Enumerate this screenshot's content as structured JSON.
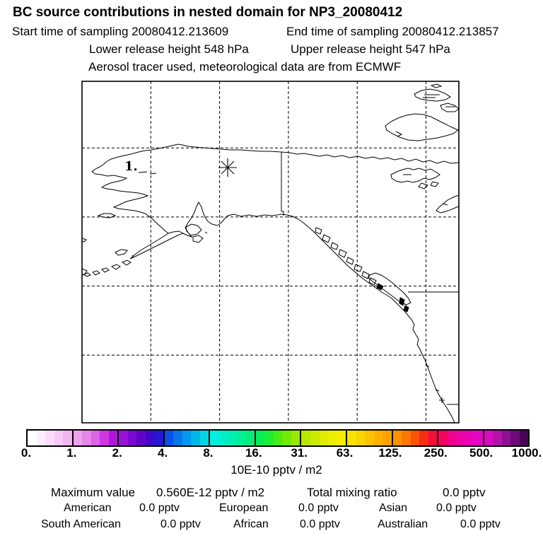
{
  "header": {
    "title": "BC  source contributions in nested domain for NP3_20080412",
    "start_time": "Start time of sampling 20080412.213609",
    "end_time": "End time of sampling 20080412.213857",
    "lower_release": "Lower release height  548 hPa",
    "upper_release": "Upper release height  547 hPa",
    "tracer_note": "Aerosol tracer used, meteorological data are from ECMWF"
  },
  "map": {
    "release_point_label": "1.",
    "marker": "asterisk-release-location"
  },
  "chart_data": {
    "type": "heatmap",
    "title": "BC source contributions in nested domain for NP3_20080412",
    "subtitle": "Footprint map (no nonzero contribution cells visible; map is blank white)",
    "region": "Alaska / NW Canada / NE Pacific",
    "grid": "dashed lat-lon graticule, 5 vertical and 4 horizontal lines",
    "colorbar_scale": [
      0,
      1,
      2,
      4,
      8,
      16,
      31,
      63,
      125,
      250,
      500,
      1000
    ],
    "colorbar_unit": "10E-10 pptv / m2",
    "release_points": [
      {
        "id": "1.",
        "marker": "asterisk"
      }
    ],
    "legend_position": "bottom"
  },
  "colorbar": {
    "tick_labels": [
      "0.",
      "1.",
      "2.",
      "4.",
      "8.",
      "16.",
      "31.",
      "63.",
      "125.",
      "250.",
      "500.",
      "1000."
    ],
    "unit_label": "10E-10 pptv / m2",
    "segments": [
      [
        "#ffffff",
        "#fdeefd",
        "#fadcfa",
        "#f6c9f6",
        "#f1b5f2"
      ],
      [
        "#eda2ee",
        "#e786ea",
        "#dd63e7",
        "#cc39e3",
        "#b315dd"
      ],
      [
        "#9a10d8",
        "#7c08d0",
        "#6004c9",
        "#4306c9",
        "#2517d4"
      ],
      [
        "#0c50e6",
        "#0676ea",
        "#0298ec",
        "#01b7ea",
        "#03d3e3"
      ],
      [
        "#00eedd",
        "#00efc9",
        "#01f0b2",
        "#01ef96",
        "#02ee7a"
      ],
      [
        "#04ee5a",
        "#1cee35",
        "#46ed15",
        "#71ea05",
        "#99e702"
      ],
      [
        "#b6e701",
        "#cde900",
        "#dfeb00",
        "#ecee00",
        "#f5ee00"
      ],
      [
        "#fae300",
        "#fcd400",
        "#fdc300",
        "#feb100",
        "#ffa200"
      ],
      [
        "#ff9200",
        "#fd7602",
        "#fa5407",
        "#f72e10",
        "#f40e38"
      ],
      [
        "#f2045f",
        "#f00289",
        "#ee01a6",
        "#ec02ba",
        "#e705c4"
      ],
      [
        "#d60cbd",
        "#b312ab",
        "#901093",
        "#6c0a78",
        "#4a0457"
      ]
    ]
  },
  "stats": {
    "max_label": "Maximum value",
    "max_value": "0.560E-12 pptv / m2",
    "total_label": "Total mixing ratio",
    "total_value": "0.0 pptv",
    "regions": [
      {
        "label": "American",
        "value": "0.0 pptv"
      },
      {
        "label": "European",
        "value": "0.0 pptv"
      },
      {
        "label": "Asian",
        "value": "0.0 pptv"
      },
      {
        "label": "South American",
        "value": "0.0 pptv"
      },
      {
        "label": "African",
        "value": "0.0 pptv"
      },
      {
        "label": "Australian",
        "value": "0.0 pptv"
      }
    ]
  }
}
